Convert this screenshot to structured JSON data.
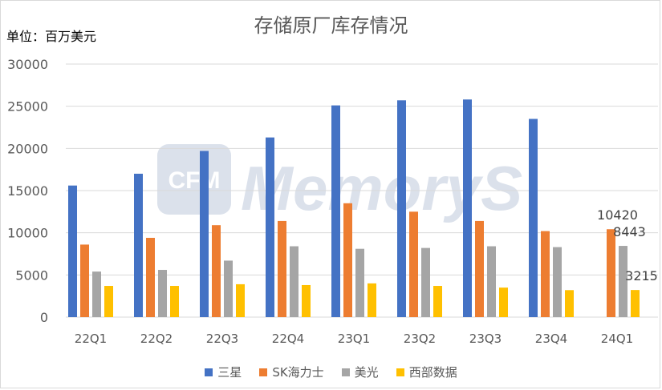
{
  "chart_data": {
    "type": "bar",
    "title": "存储原厂库存情况",
    "unit_label": "单位：百万美元",
    "categories": [
      "22Q1",
      "22Q2",
      "22Q3",
      "22Q4",
      "23Q1",
      "23Q2",
      "23Q3",
      "23Q4",
      "24Q1"
    ],
    "ylim": [
      0,
      30000
    ],
    "yticks": [
      0,
      5000,
      10000,
      15000,
      20000,
      25000,
      30000
    ],
    "grid": true,
    "legend_position": "bottom",
    "series": [
      {
        "name": "三星",
        "color": "#4472C4",
        "values": [
          15600,
          17000,
          19700,
          21300,
          25100,
          25700,
          25800,
          23500,
          null
        ]
      },
      {
        "name": "SK海力士",
        "color": "#ED7D31",
        "values": [
          8600,
          9400,
          10900,
          11400,
          13500,
          12500,
          11400,
          10200,
          10420
        ]
      },
      {
        "name": "美光",
        "color": "#A5A5A5",
        "values": [
          5400,
          5600,
          6700,
          8400,
          8100,
          8200,
          8400,
          8300,
          8443
        ]
      },
      {
        "name": "西部数据",
        "color": "#FFC000",
        "values": [
          3700,
          3700,
          3900,
          3800,
          4000,
          3700,
          3500,
          3200,
          3215
        ]
      }
    ],
    "data_labels": [
      {
        "series": 1,
        "category": 8,
        "text": "10420"
      },
      {
        "series": 2,
        "category": 8,
        "text": "8443"
      },
      {
        "series": 3,
        "category": 8,
        "text": "3215"
      }
    ],
    "watermark": "CFM MemoryS"
  }
}
